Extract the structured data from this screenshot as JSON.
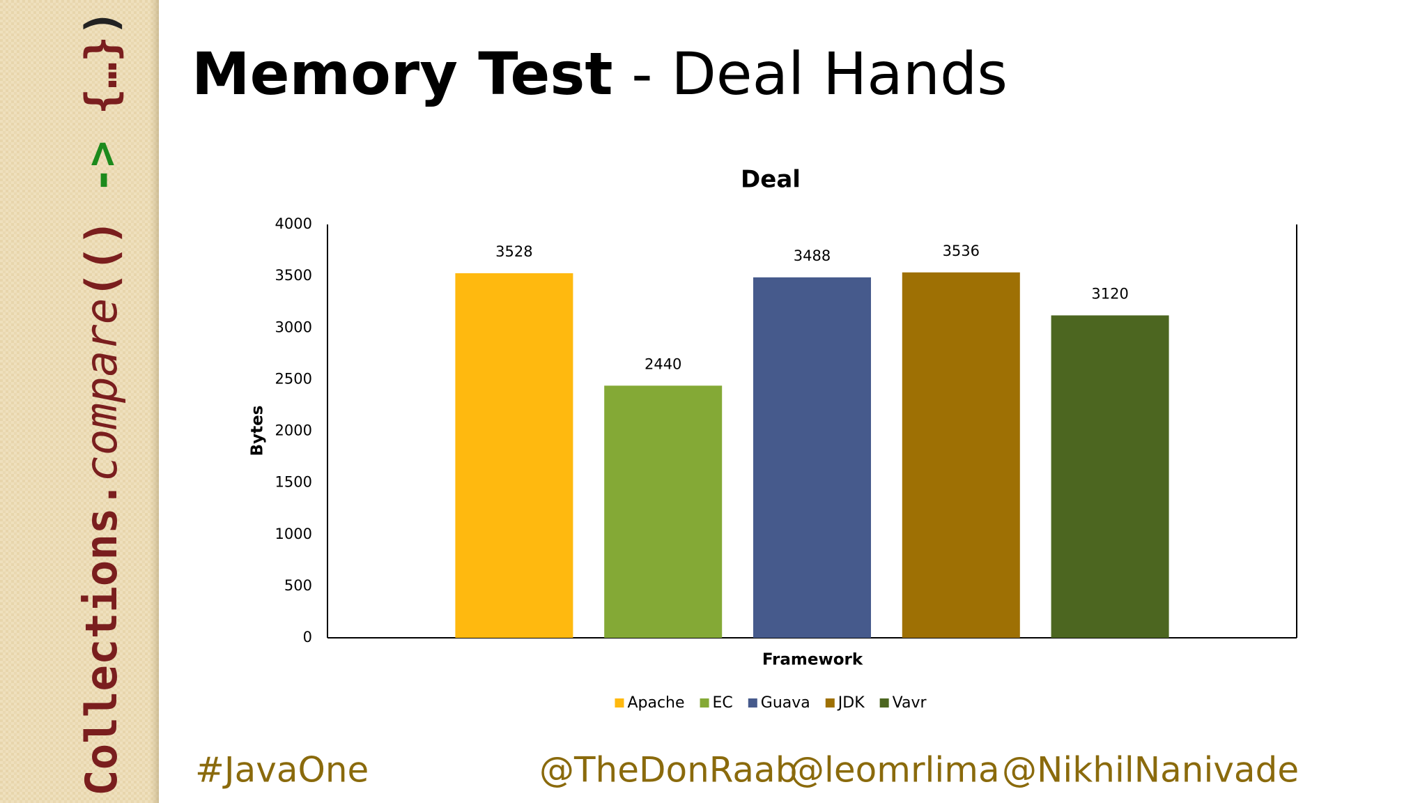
{
  "sidebar": {
    "parts": [
      "Collections",
      ".",
      "compare",
      "(",
      "()",
      " -> ",
      "{…}",
      ")"
    ]
  },
  "header": {
    "title_bold": "Memory Test",
    "title_rest": " - Deal Hands"
  },
  "chart_data": {
    "type": "bar",
    "title": "Deal",
    "x_label": "Framework",
    "y_label": "Bytes",
    "categories": [
      null
    ],
    "series": [
      {
        "name": "Apache",
        "color": "#ffb90f",
        "values": [
          3528
        ]
      },
      {
        "name": "EC",
        "color": "#84a936",
        "values": [
          2440
        ]
      },
      {
        "name": "Guava",
        "color": "#465a8c",
        "values": [
          3488
        ]
      },
      {
        "name": "JDK",
        "color": "#9e7004",
        "values": [
          3536
        ]
      },
      {
        "name": "Vavr",
        "color": "#4c6620",
        "values": [
          3120
        ]
      }
    ],
    "ylim": [
      0,
      4000
    ],
    "yticks": [
      0,
      500,
      1000,
      1500,
      2000,
      2500,
      3000,
      3500,
      4000
    ],
    "grid": false,
    "legend": "bottom"
  },
  "footer": {
    "hashtag": "#JavaOne",
    "handles": [
      "@TheDonRaab",
      "@leomrlima",
      "@NikhilNanivade"
    ]
  }
}
